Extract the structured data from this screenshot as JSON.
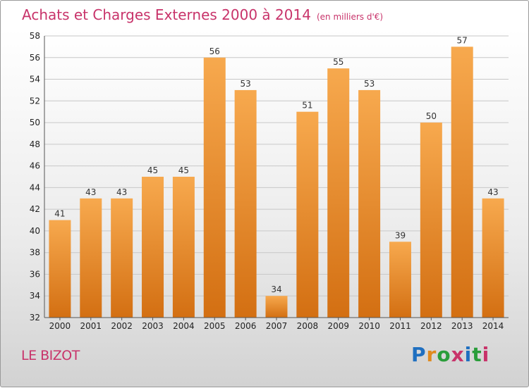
{
  "header": {
    "title": "Achats et Charges Externes 2000 à 2014",
    "unit": "(en milliers d'€)"
  },
  "footer": {
    "commune": "LE BIZOT",
    "logo_letters": [
      "P",
      "r",
      "o",
      "x",
      "i",
      "t",
      "i"
    ],
    "logo_colors": [
      "#1f6fc0",
      "#e08a1e",
      "#2a9d3a",
      "#c8336a",
      "#1f6fc0",
      "#2a9d3a",
      "#c8336a"
    ]
  },
  "colors": {
    "bar_top": "#f7a94e",
    "bar_bottom": "#d36f12",
    "title": "#c8336a"
  },
  "chart_data": {
    "type": "bar",
    "categories": [
      "2000",
      "2001",
      "2002",
      "2003",
      "2004",
      "2005",
      "2006",
      "2007",
      "2008",
      "2009",
      "2010",
      "2011",
      "2012",
      "2013",
      "2014"
    ],
    "values": [
      41,
      43,
      43,
      45,
      45,
      56,
      53,
      34,
      51,
      55,
      53,
      39,
      50,
      57,
      43
    ],
    "title": "Achats et Charges Externes 2000 à 2014",
    "ylim": [
      32,
      58
    ],
    "yticks": [
      32,
      34,
      36,
      38,
      40,
      42,
      44,
      46,
      48,
      50,
      52,
      54,
      56,
      58
    ],
    "grid": "horizontal"
  }
}
